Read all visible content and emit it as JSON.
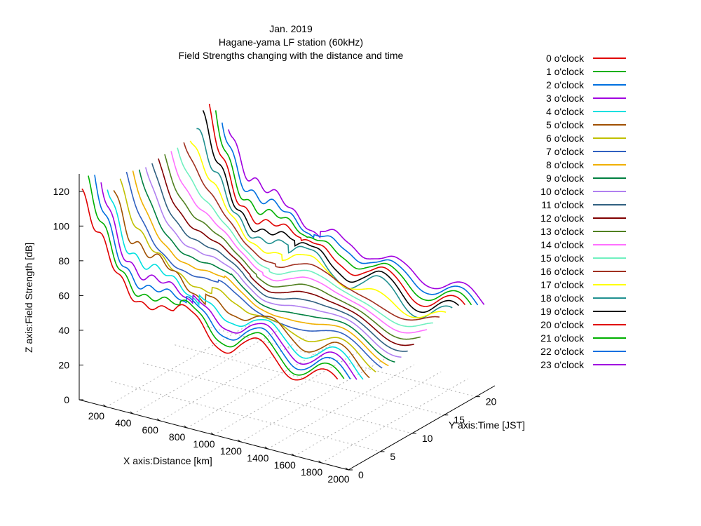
{
  "chart_data": {
    "type": "line",
    "title_lines": [
      "Jan. 2019",
      "Hagane-yama LF station (60kHz)",
      "Field Strengths changing with the distance and time"
    ],
    "xlabel": "X axis:Distance [km]",
    "ylabel": "Y axis:Time [JST]",
    "zlabel": "Z axis:Field Strength [dB]",
    "xlim": [
      0,
      2000
    ],
    "ylim": [
      0,
      23
    ],
    "zlim": [
      0,
      130
    ],
    "x_ticks": [
      "200",
      "400",
      "600",
      "800",
      "1000",
      "1200",
      "1400",
      "1600",
      "1800",
      "2000"
    ],
    "y_ticks": [
      "0",
      "5",
      "10",
      "15",
      "20"
    ],
    "z_ticks": [
      "0",
      "20",
      "40",
      "60",
      "80",
      "100",
      "120"
    ],
    "grid": true,
    "legend_position": "right",
    "series": [
      {
        "name": "0 o'clock",
        "hour": 0,
        "color": "#e00000"
      },
      {
        "name": "1 o'clock",
        "hour": 1,
        "color": "#00b000"
      },
      {
        "name": "2 o'clock",
        "hour": 2,
        "color": "#0070e0"
      },
      {
        "name": "3 o'clock",
        "hour": 3,
        "color": "#a000e0"
      },
      {
        "name": "4 o'clock",
        "hour": 4,
        "color": "#00e0e0"
      },
      {
        "name": "5 o'clock",
        "hour": 5,
        "color": "#a05000"
      },
      {
        "name": "6 o'clock",
        "hour": 6,
        "color": "#c0c000"
      },
      {
        "name": "7 o'clock",
        "hour": 7,
        "color": "#3060c0"
      },
      {
        "name": "8 o'clock",
        "hour": 8,
        "color": "#f0b000"
      },
      {
        "name": "9 o'clock",
        "hour": 9,
        "color": "#008040"
      },
      {
        "name": "10 o'clock",
        "hour": 10,
        "color": "#b080f0"
      },
      {
        "name": "11 o'clock",
        "hour": 11,
        "color": "#306080"
      },
      {
        "name": "12 o'clock",
        "hour": 12,
        "color": "#800000"
      },
      {
        "name": "13 o'clock",
        "hour": 13,
        "color": "#508020"
      },
      {
        "name": "14 o'clock",
        "hour": 14,
        "color": "#ff70ff"
      },
      {
        "name": "15 o'clock",
        "hour": 15,
        "color": "#70f0c0"
      },
      {
        "name": "16 o'clock",
        "hour": 16,
        "color": "#a03020"
      },
      {
        "name": "17 o'clock",
        "hour": 17,
        "color": "#ffff00"
      },
      {
        "name": "18 o'clock",
        "hour": 18,
        "color": "#209090"
      },
      {
        "name": "19 o'clock",
        "hour": 19,
        "color": "#000000"
      },
      {
        "name": "20 o'clock",
        "hour": 20,
        "color": "#e00000"
      },
      {
        "name": "21 o'clock",
        "hour": 21,
        "color": "#00b000"
      },
      {
        "name": "22 o'clock",
        "hour": 22,
        "color": "#0070e0"
      },
      {
        "name": "23 o'clock",
        "hour": 23,
        "color": "#a000e0"
      }
    ]
  }
}
